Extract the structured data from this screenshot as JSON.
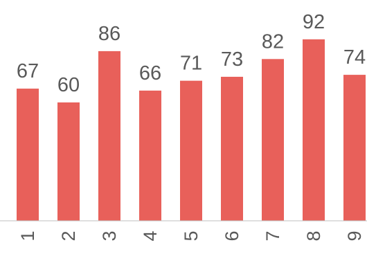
{
  "chart_data": {
    "type": "bar",
    "categories": [
      "1",
      "2",
      "3",
      "4",
      "5",
      "6",
      "7",
      "8",
      "9"
    ],
    "values": [
      67,
      60,
      86,
      66,
      71,
      73,
      82,
      92,
      74
    ],
    "title": "",
    "xlabel": "",
    "ylabel": "",
    "ylim": [
      0,
      100
    ],
    "grid": false,
    "legend": "none",
    "bar_color": "#e8605a",
    "axis_color": "#bfbfbf",
    "label_color": "#595959"
  }
}
